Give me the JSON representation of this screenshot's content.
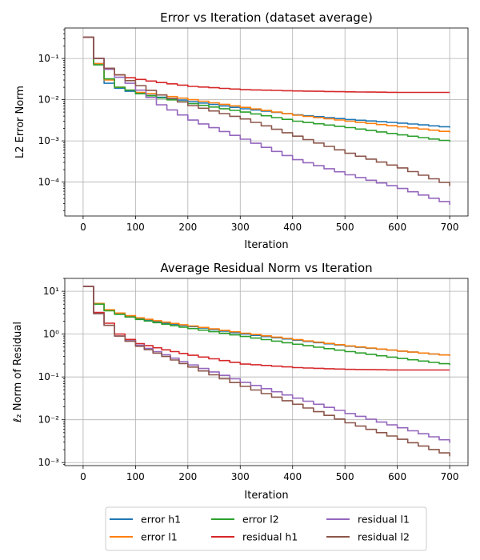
{
  "chart_data": [
    {
      "type": "line",
      "title": "Error vs Iteration (dataset average)",
      "xlabel": "Iteration",
      "ylabel": "L2 Error Norm",
      "yscale": "log",
      "xlim": [
        -35,
        735
      ],
      "ylim": [
        1.5e-05,
        0.55
      ],
      "xticks": [
        0,
        100,
        200,
        300,
        400,
        500,
        600,
        700
      ],
      "xtick_labels": [
        "0",
        "100",
        "200",
        "300",
        "400",
        "500",
        "600",
        "700"
      ],
      "yticks": [
        0.0001,
        0.001,
        0.01,
        0.1
      ],
      "ytick_labels": [
        "10⁻⁴",
        "10⁻³",
        "10⁻²",
        "10⁻¹"
      ],
      "grid": true,
      "series": [
        {
          "name": "error h1",
          "color": "#1f77b4",
          "x": [
            0,
            20,
            40,
            60,
            80,
            100,
            140,
            200,
            300,
            400,
            500,
            600,
            700
          ],
          "y": [
            0.33,
            0.075,
            0.025,
            0.019,
            0.016,
            0.014,
            0.0115,
            0.009,
            0.006,
            0.0043,
            0.0033,
            0.0027,
            0.0021
          ]
        },
        {
          "name": "error l1",
          "color": "#ff7f0e",
          "x": [
            0,
            20,
            40,
            60,
            80,
            100,
            140,
            200,
            300,
            400,
            500,
            600,
            700
          ],
          "y": [
            0.33,
            0.075,
            0.03,
            0.02,
            0.017,
            0.015,
            0.013,
            0.01,
            0.0065,
            0.0042,
            0.003,
            0.0022,
            0.0016
          ]
        },
        {
          "name": "error l2",
          "color": "#2ca02c",
          "x": [
            0,
            20,
            40,
            60,
            80,
            100,
            140,
            200,
            300,
            400,
            500,
            600,
            700
          ],
          "y": [
            0.33,
            0.07,
            0.032,
            0.02,
            0.017,
            0.014,
            0.011,
            0.008,
            0.005,
            0.003,
            0.0021,
            0.0014,
            0.00095
          ]
        },
        {
          "name": "residual h1",
          "color": "#d62728",
          "x": [
            0,
            20,
            40,
            60,
            80,
            100,
            140,
            200,
            300,
            400,
            500,
            600,
            700
          ],
          "y": [
            0.33,
            0.1,
            0.055,
            0.04,
            0.034,
            0.031,
            0.026,
            0.021,
            0.0175,
            0.0163,
            0.0155,
            0.015,
            0.015
          ]
        },
        {
          "name": "residual l1",
          "color": "#9467bd",
          "x": [
            0,
            20,
            40,
            60,
            80,
            100,
            140,
            200,
            300,
            400,
            500,
            600,
            700
          ],
          "y": [
            0.33,
            0.1,
            0.055,
            0.035,
            0.025,
            0.017,
            0.0075,
            0.0032,
            0.0011,
            0.00035,
            0.00015,
            7e-05,
            2.8e-05
          ]
        },
        {
          "name": "residual l2",
          "color": "#8c564b",
          "x": [
            0,
            20,
            40,
            60,
            80,
            100,
            140,
            200,
            300,
            400,
            500,
            600,
            700
          ],
          "y": [
            0.33,
            0.1,
            0.058,
            0.04,
            0.029,
            0.022,
            0.013,
            0.0072,
            0.0034,
            0.0013,
            0.0005,
            0.00022,
            8e-05
          ]
        }
      ]
    },
    {
      "type": "line",
      "title": "Average Residual Norm vs Iteration",
      "xlabel": "Iteration",
      "ylabel": "ℓ₂ Norm of Residual",
      "yscale": "log",
      "xlim": [
        -35,
        735
      ],
      "ylim": [
        0.00085,
        20
      ],
      "xticks": [
        0,
        100,
        200,
        300,
        400,
        500,
        600,
        700
      ],
      "xtick_labels": [
        "0",
        "100",
        "200",
        "300",
        "400",
        "500",
        "600",
        "700"
      ],
      "yticks": [
        0.001,
        0.01,
        0.1,
        1,
        10
      ],
      "ytick_labels": [
        "10⁻³",
        "10⁻²",
        "10⁻¹",
        "10⁰",
        "10¹"
      ],
      "grid": true,
      "series": [
        {
          "name": "error h1",
          "color": "#1f77b4",
          "x": [
            0,
            20,
            40,
            60,
            80,
            100,
            150,
            200,
            300,
            400,
            500,
            600,
            700
          ],
          "y": [
            13,
            5.2,
            3.6,
            3.0,
            2.6,
            2.3,
            1.8,
            1.5,
            1.0,
            0.72,
            0.52,
            0.4,
            0.31
          ]
        },
        {
          "name": "error l1",
          "color": "#ff7f0e",
          "x": [
            0,
            20,
            40,
            60,
            80,
            100,
            150,
            200,
            300,
            400,
            500,
            600,
            700
          ],
          "y": [
            13,
            5.2,
            3.7,
            3.1,
            2.7,
            2.4,
            1.9,
            1.55,
            1.05,
            0.74,
            0.53,
            0.4,
            0.31
          ]
        },
        {
          "name": "error l2",
          "color": "#2ca02c",
          "x": [
            0,
            20,
            40,
            60,
            80,
            100,
            150,
            200,
            300,
            400,
            500,
            600,
            700
          ],
          "y": [
            13,
            5.0,
            3.5,
            2.9,
            2.5,
            2.2,
            1.7,
            1.35,
            0.88,
            0.58,
            0.39,
            0.27,
            0.19
          ]
        },
        {
          "name": "residual h1",
          "color": "#d62728",
          "x": [
            0,
            20,
            40,
            60,
            80,
            100,
            150,
            200,
            300,
            400,
            500,
            600,
            700
          ],
          "y": [
            13,
            3.2,
            1.8,
            1.0,
            0.75,
            0.6,
            0.43,
            0.32,
            0.2,
            0.165,
            0.15,
            0.145,
            0.145
          ]
        },
        {
          "name": "residual l1",
          "color": "#9467bd",
          "x": [
            0,
            20,
            40,
            60,
            80,
            100,
            150,
            200,
            300,
            400,
            500,
            600,
            700
          ],
          "y": [
            13,
            3.0,
            1.6,
            0.9,
            0.7,
            0.55,
            0.33,
            0.19,
            0.075,
            0.032,
            0.014,
            0.0065,
            0.0029
          ]
        },
        {
          "name": "residual l2",
          "color": "#8c564b",
          "x": [
            0,
            20,
            40,
            60,
            80,
            100,
            150,
            200,
            300,
            400,
            500,
            600,
            700
          ],
          "y": [
            13,
            3.0,
            1.6,
            0.9,
            0.68,
            0.52,
            0.3,
            0.17,
            0.06,
            0.023,
            0.0085,
            0.0035,
            0.0014
          ]
        }
      ]
    }
  ],
  "legend": {
    "placement": "bottom-center",
    "columns": 3,
    "entries": [
      {
        "label": "error h1",
        "color": "#1f77b4"
      },
      {
        "label": "error l1",
        "color": "#ff7f0e"
      },
      {
        "label": "error l2",
        "color": "#2ca02c"
      },
      {
        "label": "residual h1",
        "color": "#d62728"
      },
      {
        "label": "residual l1",
        "color": "#9467bd"
      },
      {
        "label": "residual l2",
        "color": "#8c564b"
      }
    ]
  }
}
